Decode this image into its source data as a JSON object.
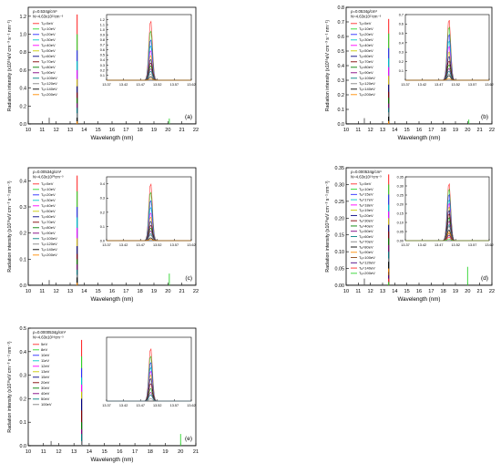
{
  "figure": {
    "type": "multi-panel spectra"
  },
  "palette": [
    "#ff2d2d",
    "#2dd42d",
    "#2d2dff",
    "#00c8c8",
    "#ff00ff",
    "#c8c800",
    "#000080",
    "#800000",
    "#008000",
    "#800080",
    "#008080",
    "#808080",
    "#000000",
    "#ff8c00",
    "#8b4513",
    "#4b0082"
  ],
  "chart_data": [
    {
      "id": "a",
      "type": "line",
      "panel_label": "(a)",
      "title": "",
      "xlabel": "Wavelength (nm)",
      "ylabel": "Radiation intensity (x10¹⁶eV cm⁻³ s⁻¹ nm⁻¹)",
      "xlim": [
        10,
        22
      ],
      "ylim": [
        0,
        1.3
      ],
      "xticks": [
        10,
        11,
        12,
        13,
        14,
        15,
        16,
        17,
        18,
        19,
        20,
        21,
        22
      ],
      "yticks": [
        0.0,
        0.2,
        0.4,
        0.6,
        0.8,
        1.0,
        1.2
      ],
      "legend_header": [
        "ρ=0.534g/cm³",
        "N=4.63x10²²cm⁻³"
      ],
      "legend": [
        "Tₑ=5eV",
        "Tₑ=10eV",
        "Tₑ=20eV",
        "Tₑ=30eV",
        "Tₑ=40eV",
        "Tₑ=50eV",
        "Tₑ=60eV",
        "Tₑ=70eV",
        "Tₑ=80eV",
        "Tₑ=90eV",
        "Tₑ=100eV",
        "Tₑ=120eV",
        "Tₑ=140eV",
        "Tₑ=200eV"
      ],
      "main_peak": {
        "x": 13.5,
        "heights": [
          1.22,
          1.0,
          0.82,
          0.7,
          0.6,
          0.5,
          0.42,
          0.35,
          0.29,
          0.23,
          0.18,
          0.12,
          0.07,
          0.03
        ]
      },
      "minor_peaks": [
        {
          "x": 11.5,
          "y": 0.07
        },
        {
          "x": 20.1,
          "y": 0.06
        }
      ],
      "inset": {
        "xlim": [
          13.37,
          13.62
        ],
        "ylim": [
          0,
          1.3
        ],
        "xticks": [
          13.37,
          13.42,
          13.47,
          13.52,
          13.57,
          13.62
        ],
        "yticks": [
          0.1,
          0.2,
          0.3,
          0.4,
          0.5,
          0.6,
          0.7,
          0.8,
          0.9,
          1.0,
          1.1,
          1.2
        ],
        "center": 13.5,
        "fwhm": 0.012,
        "heights": [
          1.2,
          1.0,
          0.82,
          0.7,
          0.6,
          0.5,
          0.42,
          0.35,
          0.29,
          0.23,
          0.18,
          0.12,
          0.07,
          0.03
        ]
      }
    },
    {
      "id": "b",
      "type": "line",
      "panel_label": "(b)",
      "title": "",
      "xlabel": "Wavelength (nm)",
      "ylabel": "Radiation intensity (x10¹⁶eV cm⁻³ s⁻¹ nm⁻¹)",
      "xlim": [
        10,
        22
      ],
      "ylim": [
        0,
        0.8
      ],
      "xticks": [
        10,
        11,
        12,
        13,
        14,
        15,
        16,
        17,
        18,
        19,
        20,
        21,
        22
      ],
      "yticks": [
        0.0,
        0.1,
        0.2,
        0.3,
        0.4,
        0.5,
        0.6,
        0.7,
        0.8
      ],
      "legend_header": [
        "ρ=0.0534g/cm³",
        "N=4.63x10²¹cm⁻³"
      ],
      "legend": [
        "Tₑ=5eV",
        "Tₑ=10eV",
        "Tₑ=20eV",
        "Tₑ=30eV",
        "Tₑ=40eV",
        "Tₑ=50eV",
        "Tₑ=60eV",
        "Tₑ=70eV",
        "Tₑ=80eV",
        "Tₑ=90eV",
        "Tₑ=100eV",
        "Tₑ=120eV",
        "Tₑ=140eV",
        "Tₑ=200eV"
      ],
      "main_peak": {
        "x": 13.5,
        "heights": [
          0.72,
          0.62,
          0.52,
          0.45,
          0.39,
          0.33,
          0.27,
          0.22,
          0.18,
          0.14,
          0.11,
          0.08,
          0.05,
          0.02
        ]
      },
      "minor_peaks": [
        {
          "x": 11.5,
          "y": 0.04
        },
        {
          "x": 20.1,
          "y": 0.03
        }
      ],
      "inset": {
        "xlim": [
          13.37,
          13.62
        ],
        "ylim": [
          0,
          0.7
        ],
        "xticks": [
          13.37,
          13.42,
          13.47,
          13.52,
          13.57,
          13.62
        ],
        "yticks": [
          0.1,
          0.2,
          0.3,
          0.4,
          0.5,
          0.6,
          0.7
        ],
        "center": 13.5,
        "fwhm": 0.012,
        "heights": [
          0.66,
          0.58,
          0.5,
          0.43,
          0.37,
          0.31,
          0.26,
          0.21,
          0.17,
          0.13,
          0.1,
          0.07,
          0.05,
          0.02
        ]
      }
    },
    {
      "id": "c",
      "type": "line",
      "panel_label": "(c)",
      "title": "",
      "xlabel": "Wavelength (nm)",
      "ylabel": "Radiation intensity (x10¹⁶eV cm⁻³ s⁻¹ nm⁻¹)",
      "xlim": [
        10,
        22
      ],
      "ylim": [
        0,
        0.45
      ],
      "xticks": [
        10,
        11,
        12,
        13,
        14,
        15,
        16,
        17,
        18,
        19,
        20,
        21,
        22
      ],
      "yticks": [
        0.0,
        0.1,
        0.2,
        0.3,
        0.4
      ],
      "legend_header": [
        "ρ=0.00534g/cm³",
        "N=4.63x10²⁰cm⁻³"
      ],
      "legend": [
        "Tₑ=5eV",
        "Tₑ=10eV",
        "Tₑ=20eV",
        "Tₑ=30eV",
        "Tₑ=40eV",
        "Tₑ=50eV",
        "Tₑ=60eV",
        "Tₑ=70eV",
        "Tₑ=80eV",
        "Tₑ=90eV",
        "Tₑ=100eV",
        "Tₑ=120eV",
        "Tₑ=140eV",
        "Tₑ=200eV"
      ],
      "main_peak": {
        "x": 13.5,
        "heights": [
          0.42,
          0.36,
          0.3,
          0.26,
          0.22,
          0.18,
          0.15,
          0.12,
          0.1,
          0.08,
          0.06,
          0.04,
          0.03,
          0.01
        ]
      },
      "minor_peaks": [
        {
          "x": 11.5,
          "y": 0.02
        },
        {
          "x": 20.1,
          "y": 0.045
        }
      ],
      "inset": {
        "xlim": [
          13.37,
          13.62
        ],
        "ylim": [
          0,
          0.45
        ],
        "xticks": [
          13.37,
          13.42,
          13.47,
          13.52,
          13.57,
          13.62
        ],
        "yticks": [
          0.0,
          0.1,
          0.2,
          0.3,
          0.4
        ],
        "center": 13.5,
        "fwhm": 0.012,
        "heights": [
          0.41,
          0.35,
          0.29,
          0.24,
          0.2,
          0.17,
          0.14,
          0.11,
          0.09,
          0.07,
          0.05,
          0.04,
          0.02,
          0.01
        ]
      }
    },
    {
      "id": "d",
      "type": "line",
      "panel_label": "(d)",
      "title": "",
      "xlabel": "Wavelength (nm)",
      "ylabel": "Radiation intensity (x10¹⁶eV cm⁻³ s⁻¹ nm⁻¹)",
      "xlim": [
        10,
        22
      ],
      "ylim": [
        0,
        0.35
      ],
      "xticks": [
        10,
        11,
        12,
        13,
        14,
        15,
        16,
        17,
        18,
        19,
        20,
        21,
        22
      ],
      "yticks": [
        0.0,
        0.05,
        0.1,
        0.15,
        0.2,
        0.25,
        0.3,
        0.35
      ],
      "legend_header": [
        "ρ=0.000534g/cm³",
        "N=4.63x10¹⁹cm⁻³"
      ],
      "legend": [
        "Tₑ=5eV",
        "Tₑ=10eV",
        "Tₑ=15eV",
        "Tₑ=17eV",
        "Tₑ=18eV",
        "Tₑ=19eV",
        "Tₑ=20eV",
        "Tₑ=30eV",
        "Tₑ=40eV",
        "Tₑ=50eV",
        "Tₑ=60eV",
        "Tₑ=70eV",
        "Tₑ=80eV",
        "Tₑ=90eV",
        "Tₑ=100eV",
        "Tₑ=120eV",
        "Tₑ=140eV",
        "Tₑ=200eV"
      ],
      "main_peak": {
        "x": 13.5,
        "heights": [
          0.33,
          0.3,
          0.27,
          0.24,
          0.22,
          0.2,
          0.18,
          0.16,
          0.14,
          0.12,
          0.1,
          0.08,
          0.07,
          0.05,
          0.04,
          0.03,
          0.02,
          0.01
        ]
      },
      "minor_peaks": [
        {
          "x": 11.5,
          "y": 0.02
        },
        {
          "x": 20.0,
          "y": 0.055
        }
      ],
      "inset": {
        "xlim": [
          13.37,
          13.62
        ],
        "ylim": [
          0,
          0.35
        ],
        "xticks": [
          13.37,
          13.42,
          13.47,
          13.52,
          13.57,
          13.62
        ],
        "yticks": [
          0.0,
          0.05,
          0.1,
          0.15,
          0.2,
          0.25,
          0.3,
          0.35
        ],
        "center": 13.5,
        "fwhm": 0.012,
        "heights": [
          0.32,
          0.29,
          0.26,
          0.23,
          0.21,
          0.19,
          0.17,
          0.15,
          0.13,
          0.11,
          0.09,
          0.08,
          0.06,
          0.05,
          0.04,
          0.03,
          0.02,
          0.01
        ]
      }
    },
    {
      "id": "e",
      "type": "line",
      "panel_label": "(e)",
      "title": "",
      "xlabel": "Wavelength (nm)",
      "ylabel": "Radiation intensity (x10¹⁶eV cm⁻³ s⁻¹ nm⁻¹)",
      "xlim": [
        10,
        21
      ],
      "ylim": [
        0,
        0.5
      ],
      "xticks": [
        10,
        11,
        12,
        13,
        14,
        15,
        16,
        17,
        18,
        19,
        20,
        21
      ],
      "yticks": [
        0.0,
        0.1,
        0.2,
        0.3,
        0.4,
        0.5
      ],
      "legend_header": [
        "ρ=0.0000534g/cm³",
        "N=4.63x10¹⁸cm⁻³"
      ],
      "legend": [
        "5eV",
        "8eV",
        "10eV",
        "11eV",
        "12eV",
        "13eV",
        "15eV",
        "20eV",
        "30eV",
        "40eV",
        "50eV",
        "100eV"
      ],
      "main_peak": {
        "x": 13.5,
        "heights": [
          0.45,
          0.38,
          0.33,
          0.29,
          0.26,
          0.23,
          0.2,
          0.15,
          0.1,
          0.07,
          0.05,
          0.02
        ]
      },
      "minor_peaks": [
        {
          "x": 11.5,
          "y": 0.02
        },
        {
          "x": 20.0,
          "y": 0.05
        }
      ],
      "inset": {
        "xlim": [
          13.37,
          13.62
        ],
        "ylim": [
          0,
          0.5
        ],
        "xticks": [
          13.37,
          13.42,
          13.47,
          13.52,
          13.57,
          13.62
        ],
        "yticks": [],
        "center": 13.5,
        "fwhm": 0.012,
        "heights": [
          0.42,
          0.36,
          0.31,
          0.27,
          0.24,
          0.21,
          0.18,
          0.14,
          0.1,
          0.07,
          0.05,
          0.02
        ]
      }
    }
  ]
}
